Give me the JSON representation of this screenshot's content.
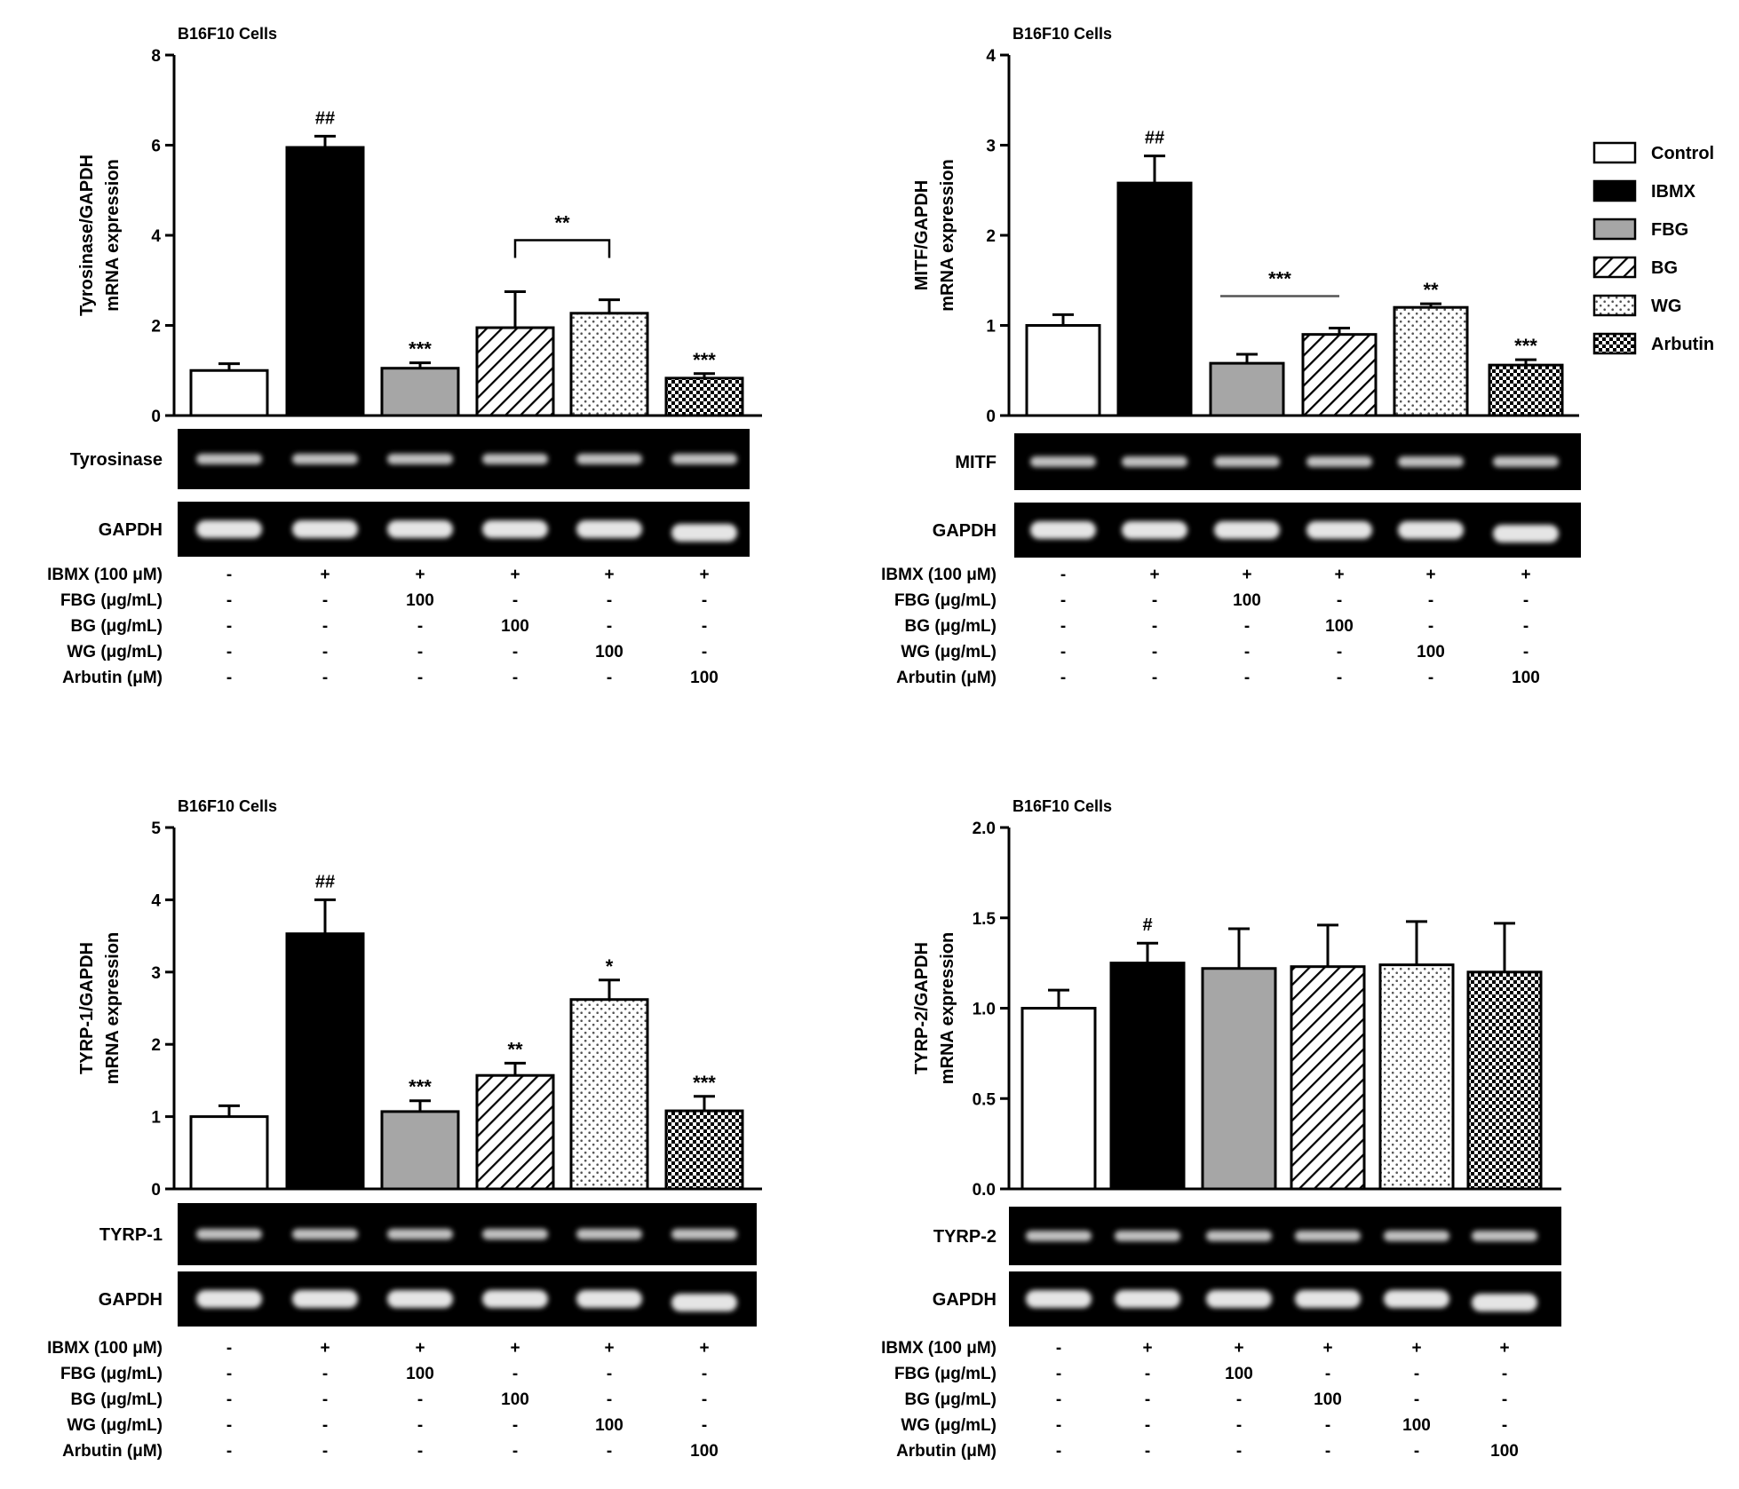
{
  "legend": {
    "items": [
      {
        "label": "Control",
        "pattern": "control"
      },
      {
        "label": "IBMX",
        "pattern": "ibmx"
      },
      {
        "label": "FBG",
        "pattern": "fbg"
      },
      {
        "label": "BG",
        "pattern": "bg"
      },
      {
        "label": "WG",
        "pattern": "wg"
      },
      {
        "label": "Arbutin",
        "pattern": "arbutin"
      }
    ]
  },
  "colors": {
    "ink": "#000000",
    "gray_bar": "#a6a6a6",
    "background": "#ffffff",
    "gel": "#000000",
    "band": "#f2f2f2"
  },
  "treatment_rows": [
    {
      "label": "IBMX (100 μM)",
      "values": [
        "-",
        "+",
        "+",
        "+",
        "+",
        "+"
      ]
    },
    {
      "label": "FBG (μg/mL)",
      "values": [
        "-",
        "-",
        "100",
        "-",
        "-",
        "-"
      ]
    },
    {
      "label": "BG (μg/mL)",
      "values": [
        "-",
        "-",
        "-",
        "100",
        "-",
        "-"
      ]
    },
    {
      "label": "WG (μg/mL)",
      "values": [
        "-",
        "-",
        "-",
        "-",
        "100",
        "-"
      ]
    },
    {
      "label": "Arbutin (μM)",
      "values": [
        "-",
        "-",
        "-",
        "-",
        "-",
        "100"
      ]
    }
  ],
  "chart_data": [
    {
      "type": "bar",
      "title": "B16F10 Cells",
      "ylabel": [
        "Tyrosinase/GAPDH",
        "mRNA expression"
      ],
      "categories": [
        "Control",
        "IBMX",
        "FBG",
        "BG",
        "WG",
        "Arbutin"
      ],
      "values": [
        1.0,
        5.95,
        1.05,
        1.95,
        2.27,
        0.83
      ],
      "errors": [
        0.15,
        0.25,
        0.12,
        0.8,
        0.3,
        0.1
      ],
      "significance": [
        "",
        "##",
        "***",
        "",
        "",
        "***"
      ],
      "bracket": {
        "from": 3,
        "to": 4,
        "label": "**",
        "style": "bracket"
      },
      "ylim": [
        0,
        8
      ],
      "yticks": [
        "0",
        "2",
        "4",
        "6",
        "8"
      ],
      "gel_labels": [
        "Tyrosinase",
        "GAPDH"
      ]
    },
    {
      "type": "bar",
      "title": "B16F10 Cells",
      "ylabel": [
        "MITF/GAPDH",
        "mRNA expression"
      ],
      "categories": [
        "Control",
        "IBMX",
        "FBG",
        "BG",
        "WG",
        "Arbutin"
      ],
      "values": [
        1.0,
        2.58,
        0.58,
        0.9,
        1.2,
        0.56
      ],
      "errors": [
        0.12,
        0.3,
        0.1,
        0.07,
        0.04,
        0.06
      ],
      "significance": [
        "",
        "##",
        "",
        "",
        "**",
        "***"
      ],
      "bracket": {
        "from": 2,
        "to": 3,
        "label": "***",
        "style": "line"
      },
      "ylim": [
        0,
        4
      ],
      "yticks": [
        "0",
        "1",
        "2",
        "3",
        "4"
      ],
      "gel_labels": [
        "MITF",
        "GAPDH"
      ]
    },
    {
      "type": "bar",
      "title": "B16F10 Cells",
      "ylabel": [
        "TYRP-1/GAPDH",
        "mRNA expression"
      ],
      "categories": [
        "Control",
        "IBMX",
        "FBG",
        "BG",
        "WG",
        "Arbutin"
      ],
      "values": [
        1.0,
        3.53,
        1.07,
        1.57,
        2.62,
        1.08
      ],
      "errors": [
        0.15,
        0.47,
        0.15,
        0.17,
        0.27,
        0.2
      ],
      "significance": [
        "",
        "##",
        "***",
        "**",
        "*",
        "***"
      ],
      "ylim": [
        0,
        5
      ],
      "yticks": [
        "0",
        "1",
        "2",
        "3",
        "4",
        "5"
      ],
      "gel_labels": [
        "TYRP-1",
        "GAPDH"
      ]
    },
    {
      "type": "bar",
      "title": "B16F10 Cells",
      "ylabel": [
        "TYRP-2/GAPDH",
        "mRNA expression"
      ],
      "categories": [
        "Control",
        "IBMX",
        "FBG",
        "BG",
        "WG",
        "Arbutin"
      ],
      "values": [
        1.0,
        1.25,
        1.22,
        1.23,
        1.24,
        1.2
      ],
      "errors": [
        0.1,
        0.11,
        0.22,
        0.23,
        0.24,
        0.27
      ],
      "significance": [
        "",
        "#",
        "",
        "",
        "",
        ""
      ],
      "ylim": [
        0,
        2.0
      ],
      "yticks": [
        "0.0",
        "0.5",
        "1.0",
        "1.5",
        "2.0"
      ],
      "gel_labels": [
        "TYRP-2",
        "GAPDH"
      ]
    }
  ]
}
